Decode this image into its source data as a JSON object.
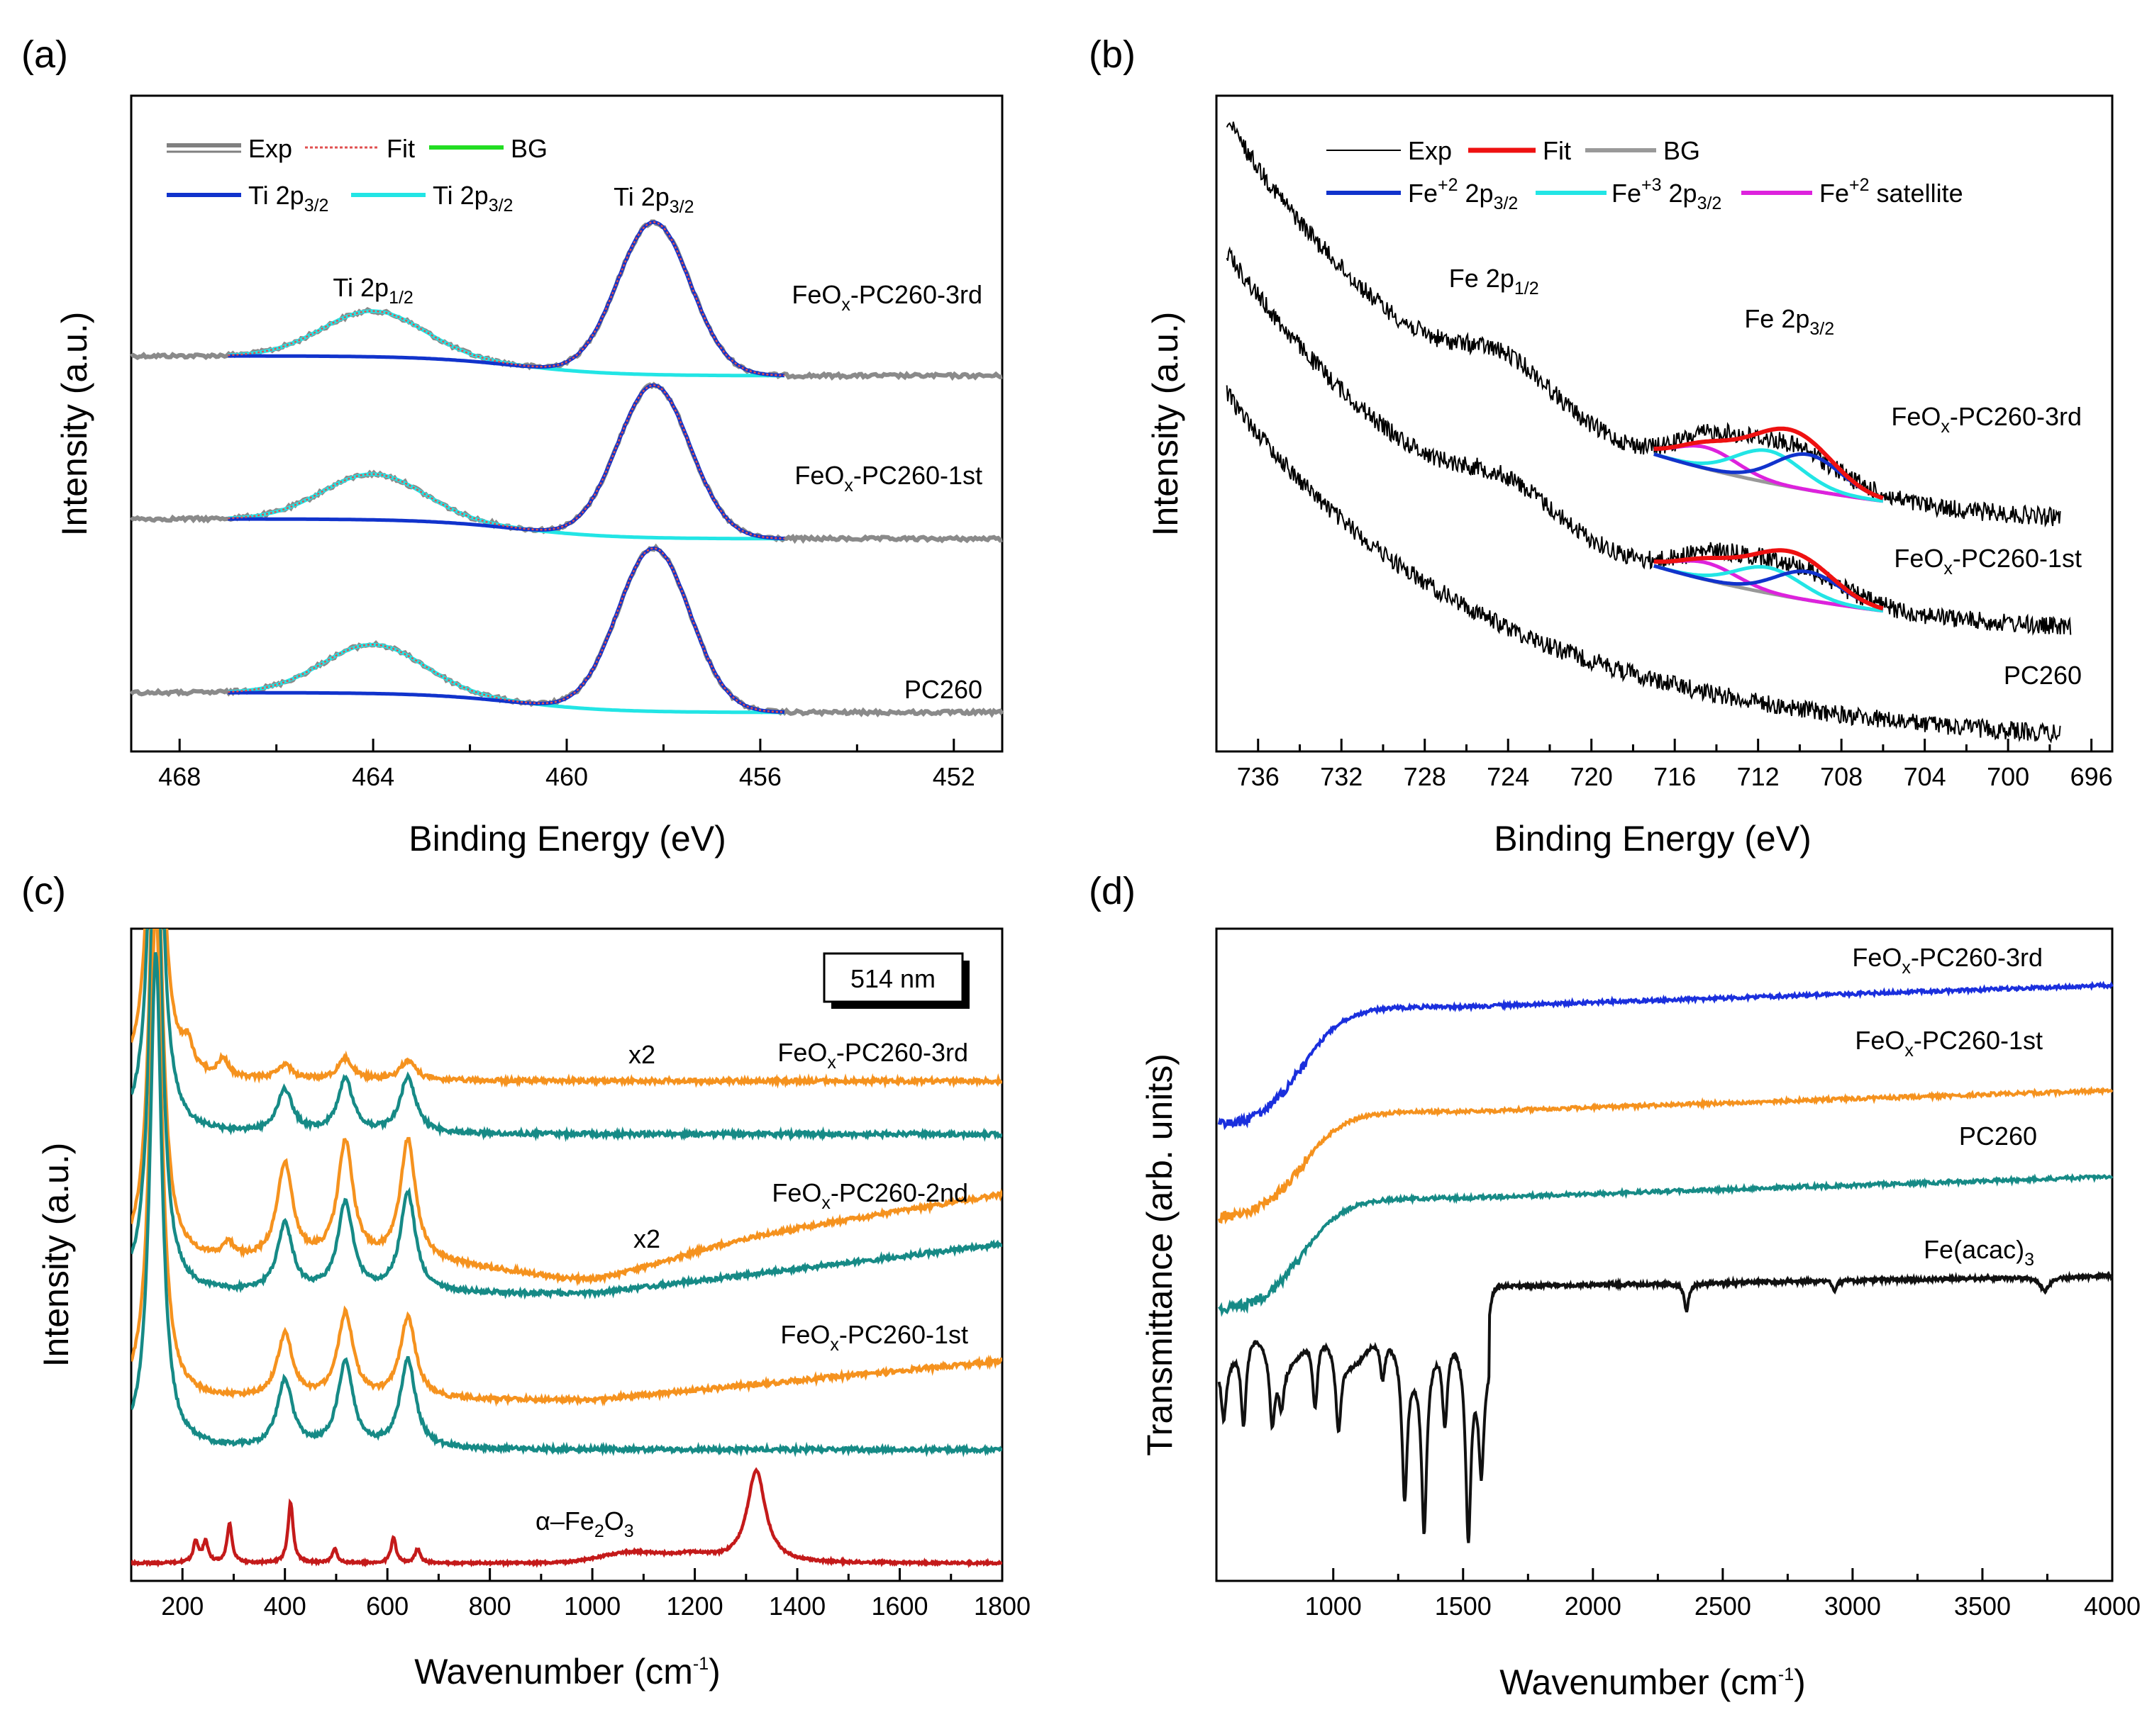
{
  "chart_data": [
    {
      "panel": "(a)",
      "type": "line",
      "xlabel": "Binding Energy (eV)",
      "ylabel": "Intensity (a.u.)",
      "xlim": [
        469,
        451
      ],
      "xticks": [
        468,
        464,
        460,
        456,
        452
      ],
      "legend": [
        "Exp",
        "Fit",
        "BG",
        "Ti 2p3/2",
        "Ti 2p3/2"
      ],
      "legend_colors": [
        "#808080",
        "#e05050",
        "#22dd22",
        "#1133cc",
        "#22e5e5"
      ],
      "peak_labels": [
        {
          "base": "Ti 2p",
          "sub": "1/2",
          "x": 464.0
        },
        {
          "base": "Ti 2p",
          "sub": "3/2",
          "x": 458.2
        }
      ],
      "series": [
        {
          "name": "FeOx-PC260-3rd",
          "label_base": "FeO",
          "label_sub": "x",
          "label_rest": "-PC260-3rd",
          "peak_main": 458.2,
          "peak_sat": 464.0
        },
        {
          "name": "FeOx-PC260-1st",
          "label_base": "FeO",
          "label_sub": "x",
          "label_rest": "-PC260-1st",
          "peak_main": 458.2,
          "peak_sat": 464.0
        },
        {
          "name": "PC260",
          "label_base": "PC260",
          "label_sub": "",
          "label_rest": "",
          "peak_main": 458.2,
          "peak_sat": 464.0
        }
      ]
    },
    {
      "panel": "(b)",
      "type": "line",
      "xlabel": "Binding Energy (eV)",
      "ylabel": "Intensity (a.u.)",
      "xlim": [
        738,
        695
      ],
      "xticks": [
        736,
        732,
        728,
        724,
        720,
        716,
        712,
        708,
        704,
        700,
        696
      ],
      "legend": [
        "Exp",
        "Fit",
        "BG",
        "Fe+2 2p3/2",
        "Fe+3 2p3/2",
        "Fe+2 satellite"
      ],
      "legend_colors": [
        "#000000",
        "#ee1111",
        "#999999",
        "#1133cc",
        "#22e5e5",
        "#dd22dd"
      ],
      "peak_labels": [
        {
          "base": "Fe 2p",
          "sub": "1/2",
          "x": 724
        },
        {
          "base": "Fe 2p",
          "sub": "3/2",
          "x": 710.5
        }
      ],
      "series": [
        {
          "name": "FeOx-PC260-3rd",
          "label_base": "FeO",
          "label_sub": "x",
          "label_rest": "-PC260-3rd"
        },
        {
          "name": "FeOx-PC260-1st",
          "label_base": "FeO",
          "label_sub": "x",
          "label_rest": "-PC260-1st"
        },
        {
          "name": "PC260",
          "label_base": "PC260",
          "label_sub": "",
          "label_rest": ""
        }
      ]
    },
    {
      "panel": "(c)",
      "type": "line",
      "xlabel": "Wavenumber (cm-1)",
      "ylabel": "Intensity (a.u.)",
      "xlim": [
        100,
        1800
      ],
      "xticks": [
        200,
        400,
        600,
        800,
        1000,
        1200,
        1400,
        1600,
        1800
      ],
      "laser": "514 nm",
      "multipliers": [
        "x2",
        "x2"
      ],
      "series": [
        {
          "name": "FeOx-PC260-3rd",
          "label_base": "FeO",
          "label_sub": "x",
          "label_rest": "-PC260-3rd",
          "colors": [
            "#f5921e",
            "#168a86"
          ],
          "peaks": [
            145,
            400,
            518,
            640
          ]
        },
        {
          "name": "FeOx-PC260-2nd",
          "label_base": "FeO",
          "label_sub": "x",
          "label_rest": "-PC260-2nd",
          "colors": [
            "#f5921e",
            "#168a86"
          ],
          "peaks": [
            145,
            400,
            518,
            640
          ]
        },
        {
          "name": "FeOx-PC260-1st",
          "label_base": "FeO",
          "label_sub": "x",
          "label_rest": "-PC260-1st",
          "colors": [
            "#f5921e",
            "#168a86"
          ],
          "peaks": [
            145,
            400,
            518,
            640
          ]
        },
        {
          "name": "α–Fe2O3",
          "label_base": "α–Fe",
          "label_sub": "2",
          "label_rest": "O",
          "label_sub2": "3",
          "colors": [
            "#c41a1a"
          ],
          "peaks": [
            226,
            245,
            292,
            411,
            497,
            612,
            659,
            1320
          ]
        }
      ]
    },
    {
      "panel": "(d)",
      "type": "line",
      "xlabel": "Wavenumber (cm-1)",
      "ylabel": "Transmittance (arb. units)",
      "xlim": [
        550,
        4000
      ],
      "xticks": [
        1000,
        1500,
        2000,
        2500,
        3000,
        3500,
        4000
      ],
      "series": [
        {
          "name": "FeOx-PC260-3rd",
          "label_base": "FeO",
          "label_sub": "x",
          "label_rest": "-PC260-3rd",
          "color": "#1a2fdd"
        },
        {
          "name": "FeOx-PC260-1st",
          "label_base": "FeO",
          "label_sub": "x",
          "label_rest": "-PC260-1st",
          "color": "#f5921e"
        },
        {
          "name": "PC260",
          "label_base": "PC260",
          "label_sub": "",
          "label_rest": "",
          "color": "#168a86"
        },
        {
          "name": "Fe(acac)3",
          "label_base": "Fe(acac)",
          "label_sub": "3",
          "label_rest": "",
          "color": "#111111"
        }
      ]
    }
  ],
  "labels": {
    "panel_a": "(a)",
    "panel_b": "(b)",
    "panel_c": "(c)",
    "panel_d": "(d)",
    "ylabel_intensity": "Intensity (a.u.)",
    "ylabel_trans": "Transmittance (arb. units)",
    "xlabel_be": "Binding Energy (eV)",
    "xlabel_wn_base": "Wavenumber (cm",
    "xlabel_wn_sup": "-1",
    "xlabel_wn_end": ")",
    "leg_a_exp": "Exp",
    "leg_a_fit": "Fit",
    "leg_a_bg": "BG",
    "leg_a_ti1": "Ti 2p",
    "leg_a_ti1_sub": "3/2",
    "leg_a_ti2": "Ti 2p",
    "leg_a_ti2_sub": "3/2",
    "leg_b_exp": "Exp",
    "leg_b_fit": "Fit",
    "leg_b_bg": "BG",
    "leg_b_fe2": "Fe",
    "leg_b_fe2_sup": "+2",
    "leg_b_fe2_rest": " 2p",
    "leg_b_fe2_sub": "3/2",
    "leg_b_fe3": "Fe",
    "leg_b_fe3_sup": "+3",
    "leg_b_fe3_rest": " 2p",
    "leg_b_fe3_sub": "3/2",
    "leg_b_sat": "Fe",
    "leg_b_sat_sup": "+2",
    "leg_b_sat_rest": " satellite"
  }
}
